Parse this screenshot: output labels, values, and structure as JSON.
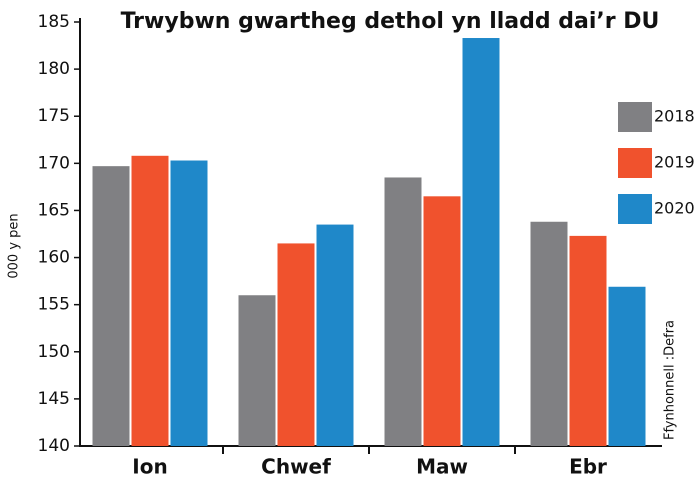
{
  "chart_data": {
    "type": "bar",
    "title": "Trwybwn gwartheg dethol yn lladd dai’r DU",
    "y_label": "000 y pen",
    "source": "Ffynhonnell :Defra",
    "categories": [
      "Ion",
      "Chwef",
      "Maw",
      "Ebr"
    ],
    "series": [
      {
        "name": "2018",
        "color": "#808083",
        "values": [
          169.7,
          156.0,
          168.5,
          163.8
        ]
      },
      {
        "name": "2019",
        "color": "#f0522d",
        "values": [
          170.8,
          161.5,
          166.5,
          162.3
        ]
      },
      {
        "name": "2020",
        "color": "#1f88c9",
        "values": [
          170.3,
          163.5,
          183.3,
          156.9
        ]
      }
    ],
    "ylim": [
      140,
      185
    ],
    "yticks": [
      140,
      145,
      150,
      155,
      160,
      165,
      170,
      175,
      180,
      185
    ],
    "legend": "right"
  }
}
